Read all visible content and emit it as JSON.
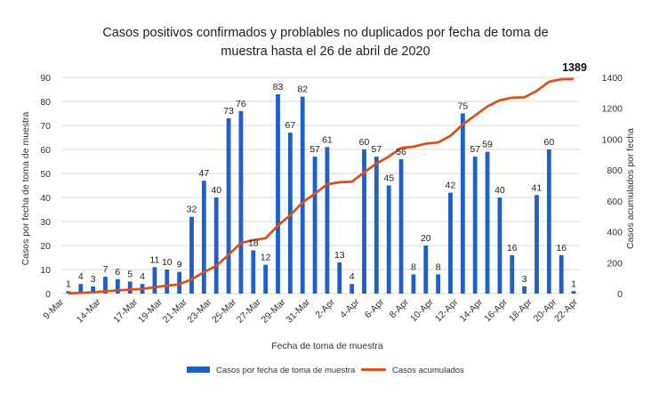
{
  "chart_data": {
    "type": "bar",
    "title_lines": [
      "Casos positivos confirmados y problables no duplicados por fecha de toma de",
      "muestra hasta el 26 de abril de 2020"
    ],
    "xlabel": "Fecha de toma de muestra",
    "ylabel_left": "Casos por fecha de toma de muestra",
    "ylabel_right": "Casos acumulados por fecha",
    "ylim_left": [
      0,
      90
    ],
    "ylim_right": [
      0,
      1400
    ],
    "yticks_left": [
      "0",
      "10",
      "20",
      "30",
      "40",
      "50",
      "60",
      "70",
      "80",
      "90"
    ],
    "yticks_right": [
      "0",
      "200",
      "400",
      "600",
      "800",
      "1000",
      "1200",
      "1400"
    ],
    "grid": true,
    "legend_position": "bottom",
    "x_tick_labels": [
      "9-Mar",
      "14-Mar",
      "17-Mar",
      "19-Mar",
      "21-Mar",
      "23-Mar",
      "25-Mar",
      "27-Mar",
      "29-Mar",
      "31-Mar",
      "2-Apr",
      "4-Apr",
      "6-Apr",
      "8-Apr",
      "10-Apr",
      "12-Apr",
      "14-Apr",
      "16-Apr",
      "18-Apr",
      "20-Apr",
      "22-Apr"
    ],
    "bar_values": [
      1,
      4,
      3,
      7,
      6,
      5,
      4,
      11,
      10,
      9,
      32,
      47,
      40,
      73,
      76,
      18,
      12,
      83,
      67,
      82,
      57,
      61,
      13,
      4,
      60,
      57,
      45,
      56,
      8,
      20,
      8,
      42,
      75,
      57,
      59,
      40,
      16,
      3,
      41,
      60,
      16,
      1
    ],
    "series": [
      {
        "name": "Casos por fecha de toma de muestra",
        "type": "bar",
        "axis": "left",
        "color": "#1f5fc6",
        "values": [
          1,
          4,
          3,
          7,
          6,
          5,
          4,
          11,
          10,
          9,
          32,
          47,
          40,
          73,
          76,
          18,
          12,
          83,
          67,
          82,
          57,
          61,
          13,
          4,
          60,
          57,
          45,
          56,
          8,
          20,
          8,
          42,
          75,
          57,
          59,
          40,
          16,
          3,
          41,
          60,
          16,
          1
        ]
      },
      {
        "name": "Casos acumulados",
        "type": "line",
        "axis": "right",
        "color": "#d9531e",
        "values": [
          1,
          5,
          8,
          15,
          21,
          26,
          30,
          41,
          51,
          60,
          92,
          139,
          179,
          252,
          328,
          346,
          358,
          441,
          508,
          590,
          647,
          708,
          721,
          725,
          785,
          842,
          887,
          943,
          951,
          971,
          979,
          1021,
          1096,
          1153,
          1212,
          1252,
          1268,
          1271,
          1312,
          1372,
          1388,
          1389
        ]
      }
    ],
    "cumulative_annotation": "1389"
  }
}
